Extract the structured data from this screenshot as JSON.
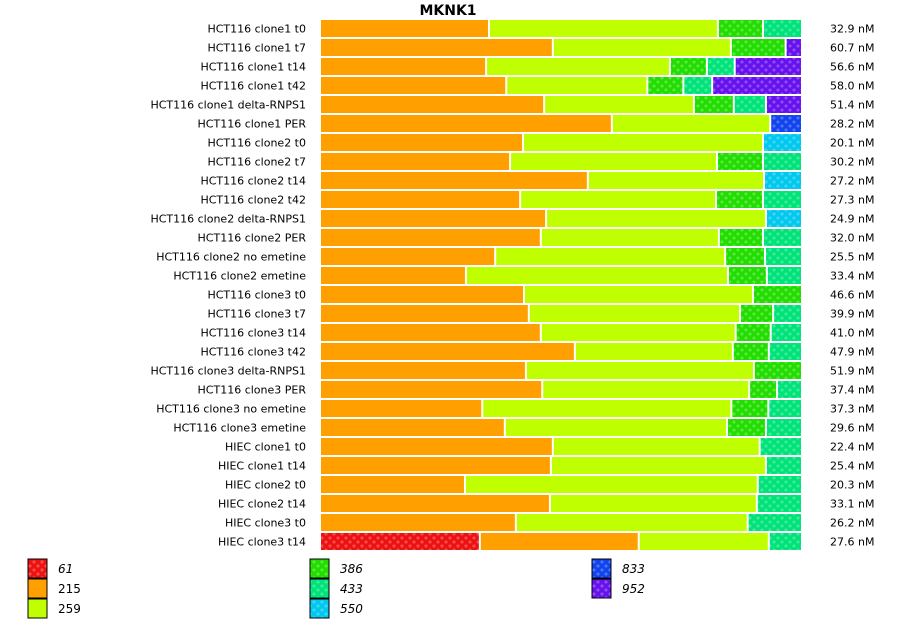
{
  "chart_data": {
    "type": "bar",
    "orientation": "horizontal",
    "stacked": true,
    "normalized": true,
    "title": "MKNK1",
    "xlabel": "",
    "ylabel": "",
    "value_unit": "nM",
    "legend_position": "bottom",
    "series_keys": [
      "61",
      "215",
      "259",
      "386",
      "433",
      "550",
      "833",
      "952"
    ],
    "legend": [
      {
        "key": "61",
        "label": "61",
        "color": "#ee1111",
        "patterned": true,
        "italic": true
      },
      {
        "key": "215",
        "label": "215",
        "color": "#ff9f00",
        "patterned": false,
        "italic": false
      },
      {
        "key": "259",
        "label": "259",
        "color": "#c0ff00",
        "patterned": false,
        "italic": false
      },
      {
        "key": "386",
        "label": "386",
        "color": "#22dd00",
        "patterned": true,
        "italic": true
      },
      {
        "key": "433",
        "label": "433",
        "color": "#00e37a",
        "patterned": true,
        "italic": true
      },
      {
        "key": "550",
        "label": "550",
        "color": "#00c8ee",
        "patterned": true,
        "italic": true
      },
      {
        "key": "833",
        "label": "833",
        "color": "#1144ee",
        "patterned": true,
        "italic": true
      },
      {
        "key": "952",
        "label": "952",
        "color": "#6611ee",
        "patterned": true,
        "italic": true
      }
    ],
    "rows": [
      {
        "label": "HCT116 clone1 t0",
        "total": "32.9 nM",
        "segments": {
          "215": 35.2,
          "259": 47.7,
          "386": 9.4,
          "433": 7.7
        }
      },
      {
        "label": "HCT116 clone1 t7",
        "total": "60.7 nM",
        "segments": {
          "215": 48.5,
          "259": 37.1,
          "386": 11.4,
          "952": 3.0
        }
      },
      {
        "label": "HCT116 clone1 t14",
        "total": "56.6 nM",
        "segments": {
          "215": 34.6,
          "259": 38.3,
          "386": 7.7,
          "433": 5.8,
          "952": 13.6
        }
      },
      {
        "label": "HCT116 clone1 t42",
        "total": "58.0 nM",
        "segments": {
          "215": 38.8,
          "259": 29.4,
          "386": 7.5,
          "433": 6.0,
          "952": 18.3
        }
      },
      {
        "label": "HCT116 clone1 delta-RNPS1",
        "total": "51.4 nM",
        "segments": {
          "215": 46.7,
          "259": 31.2,
          "386": 8.3,
          "433": 6.7,
          "952": 7.1
        }
      },
      {
        "label": "HCT116 clone1 PER",
        "total": "28.2 nM",
        "segments": {
          "215": 60.8,
          "259": 33.0,
          "833": 6.2
        }
      },
      {
        "label": "HCT116 clone2 t0",
        "total": "20.1 nM",
        "segments": {
          "215": 42.3,
          "259": 50.0,
          "550": 7.7
        }
      },
      {
        "label": "HCT116 clone2 t7",
        "total": "30.2 nM",
        "segments": {
          "215": 39.6,
          "259": 43.1,
          "386": 9.6,
          "433": 7.7
        }
      },
      {
        "label": "HCT116 clone2 t14",
        "total": "27.2 nM",
        "segments": {
          "215": 55.8,
          "259": 36.7,
          "550": 7.5
        }
      },
      {
        "label": "HCT116 clone2 t42",
        "total": "27.3 nM",
        "segments": {
          "215": 41.7,
          "259": 40.8,
          "386": 9.8,
          "433": 7.7
        }
      },
      {
        "label": "HCT116 clone2 delta-RNPS1",
        "total": "24.9 nM",
        "segments": {
          "215": 47.1,
          "259": 45.8,
          "550": 7.1
        }
      },
      {
        "label": "HCT116 clone2 PER",
        "total": "32.0 nM",
        "segments": {
          "215": 46.0,
          "259": 37.1,
          "386": 9.2,
          "433": 7.7
        }
      },
      {
        "label": "HCT116 clone2 no emetine",
        "total": "25.5 nM",
        "segments": {
          "215": 36.5,
          "259": 47.9,
          "386": 8.3,
          "433": 7.3
        }
      },
      {
        "label": "HCT116 clone2 emetine",
        "total": "33.4 nM",
        "segments": {
          "215": 30.4,
          "259": 54.6,
          "386": 8.1,
          "433": 6.9
        }
      },
      {
        "label": "HCT116 clone3 t0",
        "total": "46.6 nM",
        "segments": {
          "215": 42.5,
          "259": 47.7,
          "386": 9.8
        }
      },
      {
        "label": "HCT116 clone3 t7",
        "total": "39.9 nM",
        "segments": {
          "215": 43.5,
          "259": 44.0,
          "386": 6.9,
          "433": 5.6
        }
      },
      {
        "label": "HCT116 clone3 t14",
        "total": "41.0 nM",
        "segments": {
          "215": 46.0,
          "259": 40.6,
          "386": 7.3,
          "433": 6.1
        }
      },
      {
        "label": "HCT116 clone3 t42",
        "total": "47.9 nM",
        "segments": {
          "215": 53.1,
          "259": 32.9,
          "386": 7.5,
          "433": 6.5
        }
      },
      {
        "label": "HCT116 clone3 delta-RNPS1",
        "total": "51.9 nM",
        "segments": {
          "215": 42.9,
          "259": 47.5,
          "386": 9.6
        }
      },
      {
        "label": "HCT116 clone3 PER",
        "total": "37.4 nM",
        "segments": {
          "215": 46.3,
          "259": 43.1,
          "386": 5.8,
          "433": 4.8
        }
      },
      {
        "label": "HCT116 clone3 no emetine",
        "total": "37.3 nM",
        "segments": {
          "215": 33.8,
          "259": 51.9,
          "386": 7.7,
          "433": 6.6
        }
      },
      {
        "label": "HCT116 clone3 emetine",
        "total": "29.6 nM",
        "segments": {
          "215": 38.5,
          "259": 46.3,
          "386": 8.1,
          "433": 7.1
        }
      },
      {
        "label": "HIEC clone1 t0",
        "total": "22.4 nM",
        "segments": {
          "215": 48.5,
          "259": 43.1,
          "433": 8.4
        }
      },
      {
        "label": "HIEC clone1 t14",
        "total": "25.4 nM",
        "segments": {
          "215": 48.1,
          "259": 44.8,
          "433": 7.1
        }
      },
      {
        "label": "HIEC clone2 t0",
        "total": "20.3 nM",
        "segments": {
          "215": 30.2,
          "259": 61.0,
          "433": 8.8
        }
      },
      {
        "label": "HIEC clone2 t14",
        "total": "33.1 nM",
        "segments": {
          "215": 47.9,
          "259": 43.1,
          "433": 9.0
        }
      },
      {
        "label": "HIEC clone3 t0",
        "total": "26.2 nM",
        "segments": {
          "215": 40.8,
          "259": 48.3,
          "433": 10.9
        }
      },
      {
        "label": "HIEC clone3 t14",
        "total": "27.6 nM",
        "segments": {
          "61": 33.3,
          "215": 33.1,
          "259": 27.1,
          "433": 6.5
        }
      }
    ]
  }
}
